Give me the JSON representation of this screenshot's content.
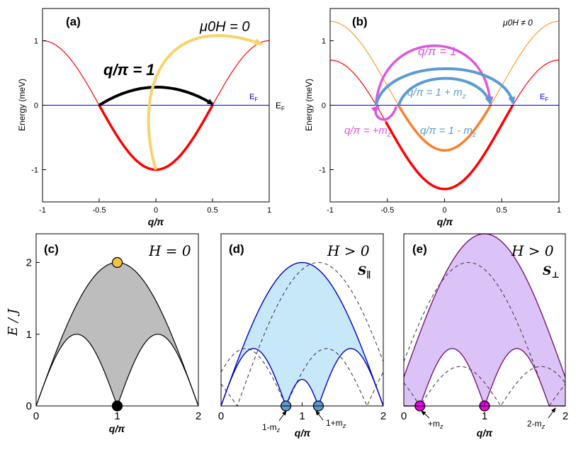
{
  "chart_data": [
    {
      "panel": "(a)",
      "type": "line",
      "xlabel": "q/π",
      "ylabel": "Energy (meV)",
      "xlim": [
        -1,
        1
      ],
      "ylim": [
        -1.5,
        1.5
      ],
      "xticks": [
        -1,
        -0.5,
        0,
        0.5,
        1
      ],
      "xtick_labels": [
        "-1",
        "-0.5",
        "0",
        "0.5",
        "1"
      ],
      "yticks": [
        -1,
        0,
        1
      ],
      "ytick_labels": [
        "-1",
        "0",
        "1"
      ],
      "fermi_label": "E",
      "fermi_sub": "F",
      "annotation_field": "μ0H = 0",
      "annotation_q": "q/π  = 1",
      "series": [
        {
          "name": "band",
          "color": "#ff0000",
          "formula": "-cos(pi*q)"
        },
        {
          "name": "fermi level",
          "color": "#0000ff",
          "value": 0
        }
      ]
    },
    {
      "panel": "(b)",
      "type": "line",
      "xlabel": "q/π",
      "ylabel": "Energy (meV)",
      "xlim": [
        -1,
        1
      ],
      "ylim": [
        -1.5,
        1.5
      ],
      "xticks": [
        -1,
        -0.5,
        0,
        0.5,
        1
      ],
      "xtick_labels": [
        "-1",
        "-0.5",
        "0",
        "0.5",
        "1"
      ],
      "yticks": [
        -1,
        0,
        1
      ],
      "ytick_labels": [
        "-1",
        "0",
        "1"
      ],
      "fermi_label": "E",
      "fermi_sub": "F",
      "annotation_field": "μ0H ≠ 0",
      "labels": {
        "q1": "q/π = 1",
        "q_plus_mz": "q/π = 1 + m",
        "q_minus_mz": "q/π = 1 - m",
        "q_mz": "q/π = +m",
        "mz_sub": "z"
      },
      "series": [
        {
          "name": "spin-up band",
          "color": "#ff9a33",
          "formula": "-cos(pi*q) + 0.3"
        },
        {
          "name": "spin-down band",
          "color": "#ff0000",
          "formula": "-cos(pi*q) - 0.3"
        },
        {
          "name": "fermi level",
          "color": "#0000ff",
          "value": 0
        }
      ]
    },
    {
      "panel": "(c)",
      "type": "area",
      "title": "H = 0",
      "xlabel": "q/π",
      "ylabel": "E / J",
      "xlim": [
        0,
        2
      ],
      "ylim": [
        0,
        2.4
      ],
      "xticks": [
        0,
        1,
        2
      ],
      "xtick_labels": [
        "0",
        "1",
        "2"
      ],
      "yticks": [
        0,
        1,
        2
      ],
      "ytick_labels": [
        "0",
        "1",
        "2"
      ],
      "fill": "#bdbdbd",
      "series": [
        {
          "name": "upper bound",
          "formula": "2*sin(pi*q/2)"
        },
        {
          "name": "lower bound",
          "formula": "|sin(pi*q)|"
        }
      ],
      "points": [
        {
          "x": 1,
          "y": 2,
          "color": "#f5c242"
        },
        {
          "x": 1,
          "y": 0,
          "color": "#000000"
        }
      ]
    },
    {
      "panel": "(d)",
      "type": "area",
      "title": "H > 0",
      "component": "S",
      "component_sub": "∥",
      "xlabel": "q/π",
      "xlim": [
        0,
        2
      ],
      "ylim": [
        0,
        2.4
      ],
      "xticks": [
        0,
        1,
        2
      ],
      "xtick_labels": [
        "0",
        "1",
        "2"
      ],
      "fill": "#c6e8f9",
      "mz": 0.2,
      "labels": {
        "left": "1-m",
        "right": "1+m",
        "sub": "z"
      },
      "points": [
        {
          "x": 0.8,
          "y": 0,
          "color": "#5b9bd5"
        },
        {
          "x": 1.2,
          "y": 0,
          "color": "#5b9bd5"
        }
      ]
    },
    {
      "panel": "(e)",
      "type": "area",
      "title": "H > 0",
      "component": "S",
      "component_sub": "⊥",
      "xlabel": "q/π",
      "xlim": [
        0,
        2
      ],
      "ylim": [
        0,
        2.4
      ],
      "xticks": [
        0,
        1,
        2
      ],
      "xtick_labels": [
        "0",
        "1",
        "2"
      ],
      "fill": "#dcc3f7",
      "mz": 0.2,
      "labels": {
        "left": "+m",
        "right": "2-m",
        "sub": "z"
      },
      "points": [
        {
          "x": 0.2,
          "y": 0,
          "color": "#e600e6"
        },
        {
          "x": 1,
          "y": 0,
          "color": "#e600e6"
        }
      ]
    }
  ]
}
